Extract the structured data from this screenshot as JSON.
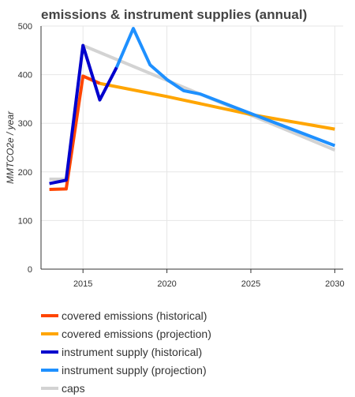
{
  "chart_data": {
    "type": "line",
    "title": "emissions & instrument supplies (annual)",
    "ylabel": "MMTCO2e / year",
    "xlabel": "",
    "xlim": [
      2012.5,
      2030.5
    ],
    "ylim": [
      0,
      500
    ],
    "xticks": [
      2015,
      2020,
      2025,
      2030
    ],
    "yticks": [
      0,
      100,
      200,
      300,
      400,
      500
    ],
    "grid": true,
    "legend_position": "bottom",
    "series": [
      {
        "name": "caps",
        "color": "#d3d3d3",
        "points": [
          [
            2013,
            185
          ],
          [
            2014,
            185
          ],
          [
            2015,
            460
          ],
          [
            2030,
            245
          ]
        ]
      },
      {
        "name": "covered emissions (projection)",
        "color": "#ffa500",
        "points": [
          [
            2015,
            397
          ],
          [
            2016,
            382
          ],
          [
            2020,
            355
          ],
          [
            2025,
            318
          ],
          [
            2030,
            288
          ]
        ]
      },
      {
        "name": "covered emissions (historical)",
        "color": "#ff4500",
        "points": [
          [
            2013,
            164
          ],
          [
            2014,
            165
          ],
          [
            2015,
            397
          ],
          [
            2016,
            382
          ]
        ]
      },
      {
        "name": "instrument supply (projection)",
        "color": "#1e90ff",
        "points": [
          [
            2017,
            415
          ],
          [
            2018,
            495
          ],
          [
            2019,
            420
          ],
          [
            2020,
            390
          ],
          [
            2021,
            367
          ],
          [
            2022,
            360
          ],
          [
            2025,
            320
          ],
          [
            2030,
            254
          ]
        ]
      },
      {
        "name": "instrument supply (historical)",
        "color": "#0000cd",
        "points": [
          [
            2013,
            176
          ],
          [
            2014,
            183
          ],
          [
            2015,
            460
          ],
          [
            2016,
            348
          ],
          [
            2017,
            415
          ]
        ]
      }
    ]
  },
  "legend": {
    "items": [
      {
        "label": "covered emissions (historical)",
        "color": "#ff4500"
      },
      {
        "label": "covered emissions (projection)",
        "color": "#ffa500"
      },
      {
        "label": "instrument supply (historical)",
        "color": "#0000cd"
      },
      {
        "label": "instrument supply (projection)",
        "color": "#1e90ff"
      },
      {
        "label": "caps",
        "color": "#d3d3d3"
      }
    ]
  }
}
